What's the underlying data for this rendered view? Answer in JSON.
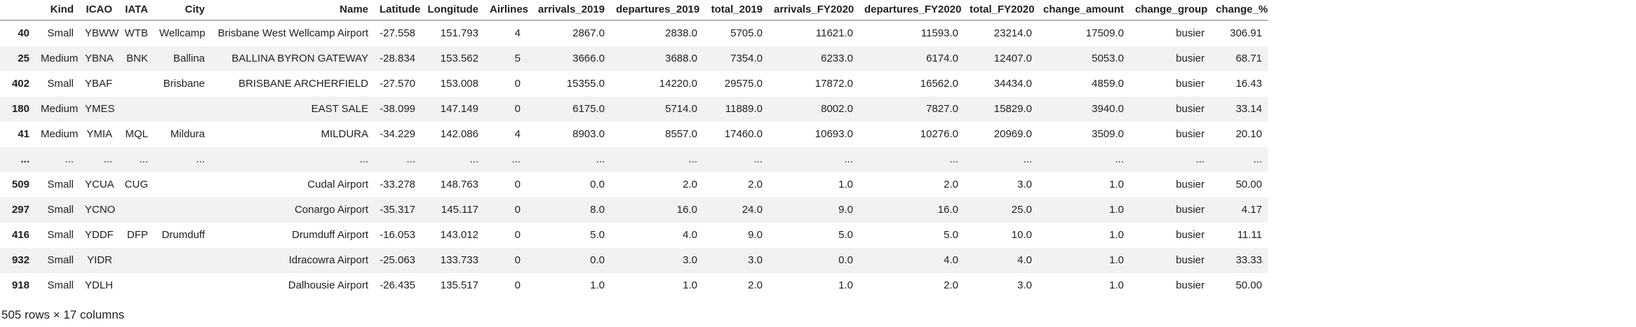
{
  "table": {
    "columns": [
      "",
      "Kind",
      "ICAO",
      "IATA",
      "City",
      "Name",
      "Latitude",
      "Longitude",
      "Airlines",
      "arrivals_2019",
      "departures_2019",
      "total_2019",
      "arrivals_FY2020",
      "departures_FY2020",
      "total_FY2020",
      "change_amount",
      "change_group",
      "change_%"
    ],
    "rows": [
      [
        "40",
        "Small",
        "YBWW",
        "WTB",
        "Wellcamp",
        "Brisbane West Wellcamp Airport",
        "-27.558",
        "151.793",
        "4",
        "2867.0",
        "2838.0",
        "5705.0",
        "11621.0",
        "11593.0",
        "23214.0",
        "17509.0",
        "busier",
        "306.91"
      ],
      [
        "25",
        "Medium",
        "YBNA",
        "BNK",
        "Ballina",
        "BALLINA BYRON GATEWAY",
        "-28.834",
        "153.562",
        "5",
        "3666.0",
        "3688.0",
        "7354.0",
        "6233.0",
        "6174.0",
        "12407.0",
        "5053.0",
        "busier",
        "68.71"
      ],
      [
        "402",
        "Small",
        "YBAF",
        "",
        "Brisbane",
        "BRISBANE ARCHERFIELD",
        "-27.570",
        "153.008",
        "0",
        "15355.0",
        "14220.0",
        "29575.0",
        "17872.0",
        "16562.0",
        "34434.0",
        "4859.0",
        "busier",
        "16.43"
      ],
      [
        "180",
        "Medium",
        "YMES",
        "",
        "",
        "EAST SALE",
        "-38.099",
        "147.149",
        "0",
        "6175.0",
        "5714.0",
        "11889.0",
        "8002.0",
        "7827.0",
        "15829.0",
        "3940.0",
        "busier",
        "33.14"
      ],
      [
        "41",
        "Medium",
        "YMIA",
        "MQL",
        "Mildura",
        "MILDURA",
        "-34.229",
        "142.086",
        "4",
        "8903.0",
        "8557.0",
        "17460.0",
        "10693.0",
        "10276.0",
        "20969.0",
        "3509.0",
        "busier",
        "20.10"
      ],
      [
        "...",
        "...",
        "...",
        "...",
        "...",
        "...",
        "...",
        "...",
        "...",
        "...",
        "...",
        "...",
        "...",
        "...",
        "...",
        "...",
        "...",
        "..."
      ],
      [
        "509",
        "Small",
        "YCUA",
        "CUG",
        "",
        "Cudal Airport",
        "-33.278",
        "148.763",
        "0",
        "0.0",
        "2.0",
        "2.0",
        "1.0",
        "2.0",
        "3.0",
        "1.0",
        "busier",
        "50.00"
      ],
      [
        "297",
        "Small",
        "YCNO",
        "",
        "",
        "Conargo Airport",
        "-35.317",
        "145.117",
        "0",
        "8.0",
        "16.0",
        "24.0",
        "9.0",
        "16.0",
        "25.0",
        "1.0",
        "busier",
        "4.17"
      ],
      [
        "416",
        "Small",
        "YDDF",
        "DFP",
        "Drumduff",
        "Drumduff Airport",
        "-16.053",
        "143.012",
        "0",
        "5.0",
        "4.0",
        "9.0",
        "5.0",
        "5.0",
        "10.0",
        "1.0",
        "busier",
        "11.11"
      ],
      [
        "932",
        "Small",
        "YIDR",
        "",
        "",
        "Idracowra Airport",
        "-25.063",
        "133.733",
        "0",
        "0.0",
        "3.0",
        "3.0",
        "0.0",
        "4.0",
        "4.0",
        "1.0",
        "busier",
        "33.33"
      ],
      [
        "918",
        "Small",
        "YDLH",
        "",
        "",
        "Dalhousie Airport",
        "-26.435",
        "135.517",
        "0",
        "1.0",
        "1.0",
        "2.0",
        "1.0",
        "2.0",
        "3.0",
        "1.0",
        "busier",
        "50.00"
      ]
    ],
    "footer": "505 rows × 17 columns"
  },
  "colors": {
    "stripe": "#f2f2f2",
    "header_border": "#b5b5b5",
    "text": "#212121"
  }
}
